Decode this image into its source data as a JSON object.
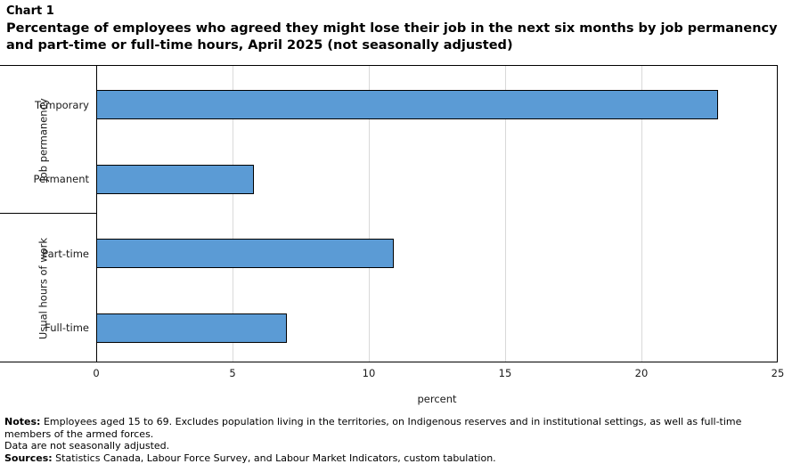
{
  "header": {
    "chart_label": "Chart 1"
  },
  "chart_data": {
    "type": "bar",
    "orientation": "horizontal",
    "title": "Percentage of employees who agreed they might lose their job in the next six months by job permanency and part-time or full-time hours, April 2025 (not seasonally adjusted)",
    "xlabel": "percent",
    "xlim": [
      0,
      25
    ],
    "xticks": [
      0,
      5,
      10,
      15,
      20,
      25
    ],
    "grid": true,
    "legend": false,
    "bar_color": "#5B9BD5",
    "bar_border_color": "#000000",
    "gridline_color": "#D9D9D9",
    "axis_color": "#000000",
    "groups": [
      {
        "group_label": "Job permanency",
        "categories": [
          "Temporary",
          "Permanent"
        ],
        "values": [
          22.8,
          5.8
        ]
      },
      {
        "group_label": "Usual hours of work",
        "categories": [
          "Part-time",
          "Full-time"
        ],
        "values": [
          10.9,
          7.0
        ]
      }
    ]
  },
  "footer": {
    "notes_label": "Notes:",
    "notes_text": "Employees aged 15 to 69. Excludes population living in the territories, on Indigenous reserves and in institutional settings, as well as full-time members of the armed forces.",
    "seasonal_note": "Data are not seasonally adjusted.",
    "sources_label": "Sources:",
    "sources_text": "Statistics Canada, Labour Force Survey, and Labour Market Indicators, custom tabulation."
  }
}
